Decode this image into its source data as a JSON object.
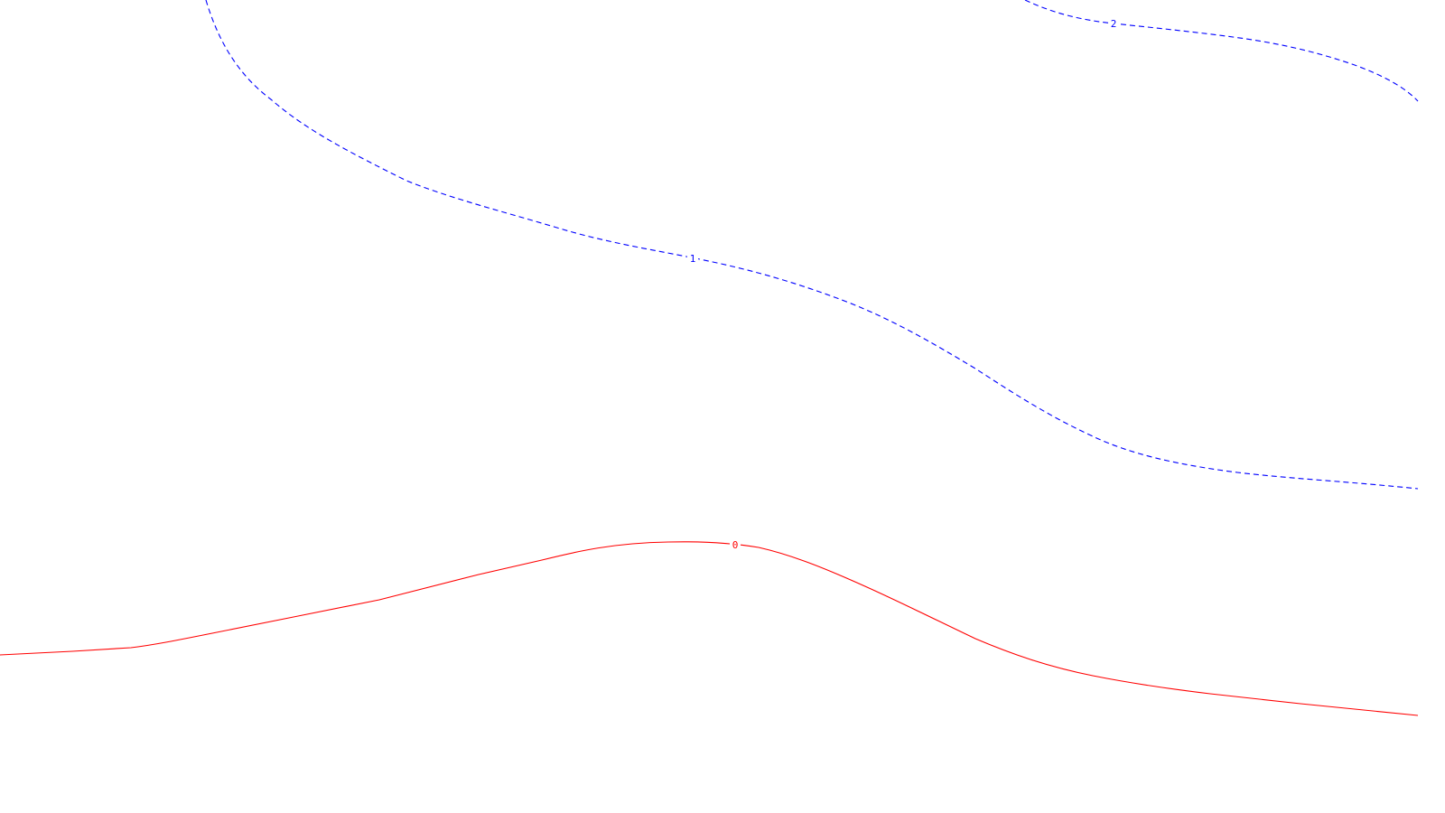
{
  "chart_data": {
    "type": "contour",
    "title": "",
    "xlabel": "",
    "ylabel": "",
    "grid": false,
    "axes_visible": false,
    "legend": "none",
    "contours": [
      {
        "level": "0",
        "color": "#ff0000",
        "line_style": "solid"
      },
      {
        "level": "1",
        "color": "#0000ff",
        "line_style": "dashed"
      },
      {
        "level": "2",
        "color": "#0000ff",
        "line_style": "dashed"
      }
    ]
  }
}
